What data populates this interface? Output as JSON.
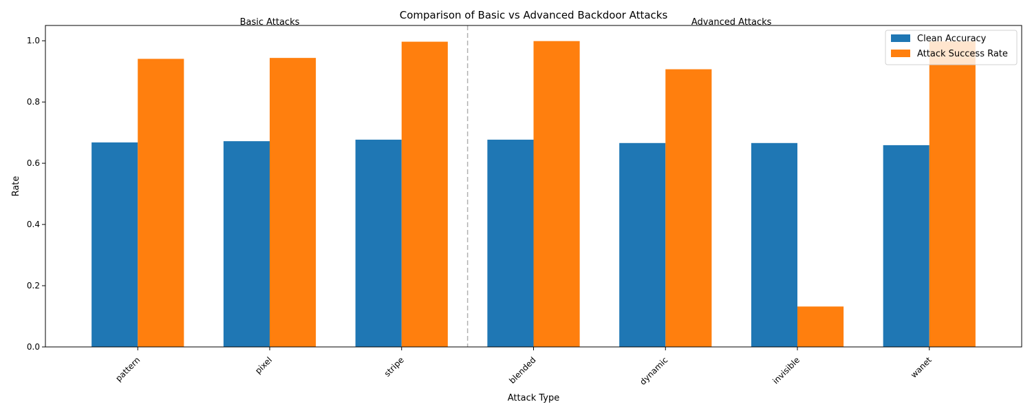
{
  "chart_data": {
    "type": "bar",
    "title": "Comparison of Basic vs Advanced Backdoor Attacks",
    "xlabel": "Attack Type",
    "ylabel": "Rate",
    "ylim": [
      0,
      1.05
    ],
    "yticks": [
      "0.0",
      "0.2",
      "0.4",
      "0.6",
      "0.8",
      "1.0"
    ],
    "categories": [
      "pattern",
      "pixel",
      "stripe",
      "blended",
      "dynamic",
      "invisible",
      "wanet"
    ],
    "series": [
      {
        "name": "Clean Accuracy",
        "color": "#1f77b4",
        "values": [
          0.668,
          0.672,
          0.677,
          0.677,
          0.666,
          0.666,
          0.659
        ]
      },
      {
        "name": "Attack Success Rate",
        "color": "#ff7f0e",
        "values": [
          0.941,
          0.944,
          0.997,
          0.999,
          0.907,
          0.132,
          0.998
        ]
      }
    ],
    "annotations": [
      "Basic Attacks",
      "Advanced Attacks"
    ],
    "legend_position": "top-right",
    "grid": false
  }
}
